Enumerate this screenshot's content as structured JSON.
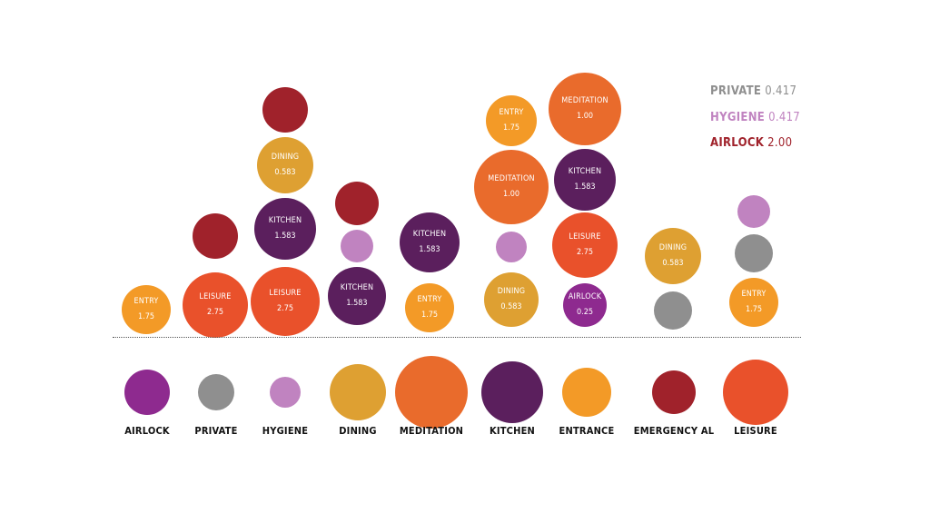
{
  "colors": {
    "airlock": "#8e2a8f",
    "private": "#8f8f8f",
    "hygiene": "#c083c0",
    "dining": "#dea032",
    "meditation": "#e96b2c",
    "kitchen": "#5b1f5d",
    "entrance": "#f39a27",
    "emergency_airlock": "#a0222b",
    "leisure": "#e9512b"
  },
  "legend": [
    {
      "label": "PRIVATE",
      "value": "0.417",
      "color_key": "private"
    },
    {
      "label": "HYGIENE",
      "value": "0.417",
      "color_key": "hygiene"
    },
    {
      "label": "AIRLOCK",
      "value": "2.00",
      "color_key": "emergency_airlock"
    }
  ],
  "stacks": [
    {
      "bubbles": [
        {
          "label": "ENTRY",
          "value": "1.75",
          "color_key": "entrance"
        }
      ]
    },
    {
      "bubbles": [
        {
          "label": "LEISURE",
          "value": "2.75",
          "color_key": "leisure"
        },
        {
          "label": "",
          "value": "",
          "color_key": "emergency_airlock"
        }
      ]
    },
    {
      "bubbles": [
        {
          "label": "LEISURE",
          "value": "2.75",
          "color_key": "leisure"
        },
        {
          "label": "KITCHEN",
          "value": "1.583",
          "color_key": "kitchen"
        },
        {
          "label": "DINING",
          "value": "0.583",
          "color_key": "dining"
        },
        {
          "label": "",
          "value": "",
          "color_key": "emergency_airlock"
        }
      ]
    },
    {
      "bubbles": [
        {
          "label": "KITCHEN",
          "value": "1.583",
          "color_key": "kitchen"
        },
        {
          "label": "",
          "value": "",
          "color_key": "hygiene"
        },
        {
          "label": "",
          "value": "",
          "color_key": "emergency_airlock"
        }
      ]
    },
    {
      "bubbles": [
        {
          "label": "ENTRY",
          "value": "1.75",
          "color_key": "entrance"
        },
        {
          "label": "KITCHEN",
          "value": "1.583",
          "color_key": "kitchen"
        }
      ]
    },
    {
      "bubbles": [
        {
          "label": "DINING",
          "value": "0.583",
          "color_key": "dining"
        },
        {
          "label": "",
          "value": "",
          "color_key": "hygiene"
        },
        {
          "label": "MEDITATION",
          "value": "1.00",
          "color_key": "meditation"
        },
        {
          "label": "ENTRY",
          "value": "1.75",
          "color_key": "entrance"
        }
      ]
    },
    {
      "bubbles": [
        {
          "label": "AIRLOCK",
          "value": "0.25",
          "color_key": "airlock"
        },
        {
          "label": "LEISURE",
          "value": "2.75",
          "color_key": "leisure"
        },
        {
          "label": "KITCHEN",
          "value": "1.583",
          "color_key": "kitchen"
        },
        {
          "label": "MEDITATION",
          "value": "1.00",
          "color_key": "meditation"
        }
      ]
    },
    {
      "bubbles": [
        {
          "label": "",
          "value": "",
          "color_key": "private"
        },
        {
          "label": "DINING",
          "value": "0.583",
          "color_key": "dining"
        }
      ]
    },
    {
      "bubbles": [
        {
          "label": "ENTRY",
          "value": "1.75",
          "color_key": "entrance"
        },
        {
          "label": "",
          "value": "",
          "color_key": "private"
        },
        {
          "label": "",
          "value": "",
          "color_key": "hygiene"
        }
      ]
    }
  ],
  "key": [
    {
      "label": "AIRLOCK",
      "color_key": "airlock"
    },
    {
      "label": "PRIVATE",
      "color_key": "private"
    },
    {
      "label": "HYGIENE",
      "color_key": "hygiene"
    },
    {
      "label": "DINING",
      "color_key": "dining"
    },
    {
      "label": "MEDITATION",
      "color_key": "meditation"
    },
    {
      "label": "KITCHEN",
      "color_key": "kitchen"
    },
    {
      "label": "ENTRANCE",
      "color_key": "entrance"
    },
    {
      "label": "EMERGENCY AL",
      "color_key": "emergency_airlock"
    },
    {
      "label": "LEISURE",
      "color_key": "leisure"
    }
  ]
}
